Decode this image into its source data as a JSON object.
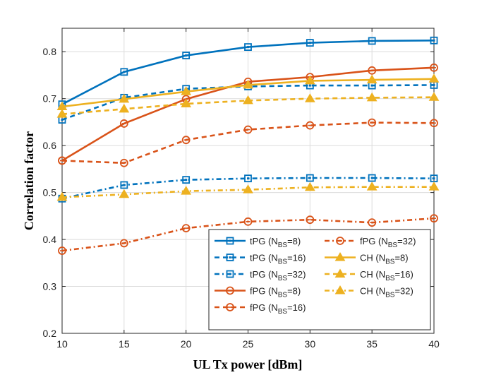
{
  "chart_data": {
    "type": "line",
    "xlabel": "UL Tx power [dBm]",
    "ylabel": "Correlation factor",
    "x": [
      10,
      15,
      20,
      25,
      30,
      35,
      40
    ],
    "xlim": [
      10,
      40
    ],
    "ylim": [
      0.2,
      0.85
    ],
    "xticks": [
      10,
      15,
      20,
      25,
      30,
      35,
      40
    ],
    "yticks": [
      0.2,
      0.3,
      0.4,
      0.5,
      0.6,
      0.7,
      0.8
    ],
    "grid": true,
    "legend_position": "bottom-right",
    "series": [
      {
        "name": "tPG",
        "nbs": "8",
        "color": "#0072BD",
        "dash": "solid",
        "marker": "square",
        "values": [
          0.688,
          0.757,
          0.792,
          0.81,
          0.819,
          0.823,
          0.824
        ]
      },
      {
        "name": "tPG",
        "nbs": "16",
        "color": "#0072BD",
        "dash": "dashed",
        "marker": "square",
        "values": [
          0.655,
          0.702,
          0.721,
          0.726,
          0.728,
          0.728,
          0.729
        ]
      },
      {
        "name": "tPG",
        "nbs": "32",
        "color": "#0072BD",
        "dash": "dashdot",
        "marker": "square",
        "values": [
          0.487,
          0.516,
          0.527,
          0.53,
          0.531,
          0.531,
          0.53
        ]
      },
      {
        "name": "fPG",
        "nbs": "8",
        "color": "#D95319",
        "dash": "solid",
        "marker": "circle",
        "values": [
          0.568,
          0.647,
          0.699,
          0.736,
          0.746,
          0.76,
          0.766
        ]
      },
      {
        "name": "fPG",
        "nbs": "16",
        "color": "#D95319",
        "dash": "dashed",
        "marker": "circle",
        "values": [
          0.568,
          0.563,
          0.612,
          0.634,
          0.643,
          0.649,
          0.648
        ]
      },
      {
        "name": "fPG",
        "nbs": "32",
        "color": "#D95319",
        "dash": "dashdot",
        "marker": "circle",
        "values": [
          0.376,
          0.392,
          0.424,
          0.438,
          0.442,
          0.436,
          0.445
        ]
      },
      {
        "name": "CH",
        "nbs": "8",
        "color": "#EDB120",
        "dash": "solid",
        "marker": "triangle",
        "values": [
          0.683,
          0.699,
          0.715,
          0.729,
          0.738,
          0.74,
          0.742
        ]
      },
      {
        "name": "CH",
        "nbs": "16",
        "color": "#EDB120",
        "dash": "dashed",
        "marker": "triangle",
        "values": [
          0.667,
          0.678,
          0.689,
          0.696,
          0.7,
          0.702,
          0.703
        ]
      },
      {
        "name": "CH",
        "nbs": "32",
        "color": "#EDB120",
        "dash": "dashdot",
        "marker": "triangle",
        "values": [
          0.49,
          0.496,
          0.503,
          0.506,
          0.511,
          0.512,
          0.512
        ]
      }
    ],
    "legend_order": [
      0,
      5,
      1,
      6,
      2,
      7,
      3,
      8,
      4
    ]
  }
}
